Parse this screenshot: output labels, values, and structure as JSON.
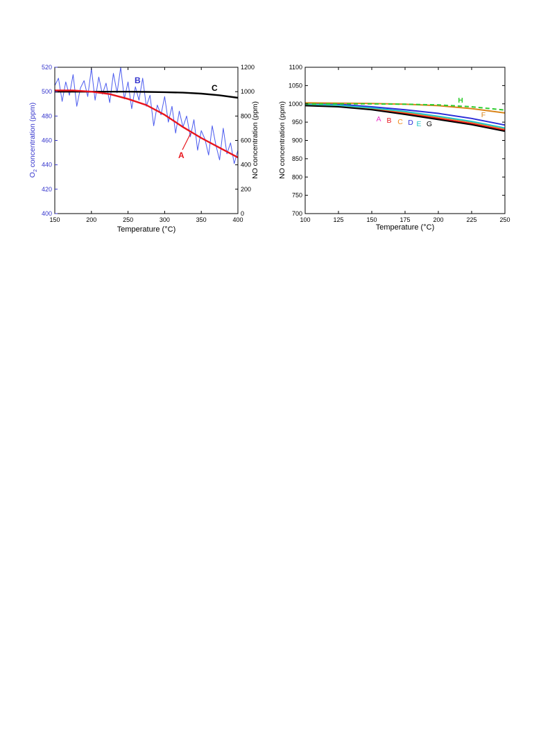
{
  "chart_data": [
    {
      "type": "line",
      "xlabel": "Temperature (°C)",
      "ylabel_left_main": "O",
      "ylabel_left_sub": "2",
      "ylabel_left_rest": " concentration (ppm)",
      "ylabel_right": "NO concentration (ppm)",
      "xlim": [
        150,
        400
      ],
      "ylim_left": [
        400,
        520
      ],
      "ylim_right": [
        0,
        1200
      ],
      "xticks": [
        150,
        200,
        250,
        300,
        350,
        400
      ],
      "yticks_left": [
        400,
        420,
        440,
        460,
        480,
        500,
        520
      ],
      "yticks_right": [
        0,
        200,
        400,
        600,
        800,
        1000,
        1200
      ],
      "colors": {
        "left_axis": "#3333cc",
        "A": "#e8141c",
        "B": "#4a5aee",
        "C": "#000000"
      },
      "annotations": {
        "A": "A",
        "B": "B",
        "C": "C"
      },
      "series": [
        {
          "label": "A",
          "axis": "left",
          "x": [
            150,
            175,
            200,
            225,
            250,
            275,
            300,
            325,
            350,
            375,
            400
          ],
          "y": [
            501,
            501,
            500,
            498,
            494,
            489,
            481,
            471,
            462,
            454,
            446
          ]
        },
        {
          "label": "B",
          "axis": "left",
          "x": [
            150,
            155,
            160,
            165,
            170,
            175,
            180,
            185,
            190,
            195,
            200,
            205,
            210,
            215,
            220,
            225,
            230,
            235,
            240,
            245,
            250,
            255,
            260,
            265,
            270,
            275,
            280,
            285,
            290,
            295,
            300,
            305,
            310,
            315,
            320,
            325,
            330,
            335,
            340,
            345,
            350,
            355,
            360,
            365,
            370,
            375,
            380,
            385,
            390,
            395,
            400
          ],
          "y": [
            505,
            511,
            492,
            508,
            497,
            514,
            488,
            503,
            509,
            496,
            519,
            493,
            512,
            498,
            507,
            491,
            515,
            499,
            520,
            494,
            508,
            486,
            504,
            493,
            511,
            488,
            497,
            472,
            489,
            481,
            496,
            475,
            488,
            466,
            484,
            471,
            480,
            463,
            477,
            452,
            468,
            461,
            448,
            472,
            456,
            444,
            470,
            449,
            458,
            441,
            452
          ]
        },
        {
          "label": "C",
          "axis": "right",
          "x": [
            150,
            175,
            200,
            225,
            250,
            275,
            300,
            325,
            350,
            375,
            400
          ],
          "y": [
            1000,
            1000,
            1000,
            1000,
            1000,
            998,
            996,
            992,
            984,
            970,
            950
          ]
        }
      ]
    },
    {
      "type": "line",
      "xlabel": "Temperature (°C)",
      "ylabel": "NO concentration (ppm)",
      "xlim": [
        100,
        250
      ],
      "ylim": [
        700,
        1100
      ],
      "xticks": [
        100,
        125,
        150,
        175,
        200,
        225,
        250
      ],
      "yticks": [
        700,
        750,
        800,
        850,
        900,
        950,
        1000,
        1050,
        1100
      ],
      "series": [
        {
          "label": "A",
          "color": "#ee33cc",
          "dash": false,
          "x": [
            100,
            125,
            150,
            175,
            200,
            225,
            250
          ],
          "y": [
            996,
            993,
            985,
            972,
            958,
            944,
            926
          ]
        },
        {
          "label": "B",
          "color": "#e8141c",
          "dash": false,
          "x": [
            100,
            125,
            150,
            175,
            200,
            225,
            250
          ],
          "y": [
            997,
            994,
            986,
            974,
            960,
            946,
            928
          ]
        },
        {
          "label": "C",
          "color": "#f08c1e",
          "dash": false,
          "x": [
            100,
            125,
            150,
            175,
            200,
            225,
            250
          ],
          "y": [
            998,
            995,
            988,
            977,
            964,
            950,
            932
          ]
        },
        {
          "label": "D",
          "color": "#2b2bd8",
          "dash": false,
          "x": [
            100,
            125,
            150,
            175,
            200,
            225,
            250
          ],
          "y": [
            1002,
            999,
            992,
            984,
            974,
            960,
            942
          ]
        },
        {
          "label": "E",
          "color": "#22c4c8",
          "dash": false,
          "x": [
            100,
            125,
            150,
            175,
            200,
            225,
            250
          ],
          "y": [
            999,
            996,
            989,
            979,
            966,
            952,
            934
          ]
        },
        {
          "label": "F",
          "color": "#d9841a",
          "dash": false,
          "x": [
            100,
            125,
            150,
            175,
            200,
            225,
            250
          ],
          "y": [
            1003,
            1002,
            1001,
            999,
            995,
            987,
            975
          ]
        },
        {
          "label": "G",
          "color": "#000000",
          "dash": false,
          "x": [
            100,
            125,
            150,
            175,
            200,
            225,
            250
          ],
          "y": [
            995,
            992,
            984,
            971,
            957,
            943,
            925
          ]
        },
        {
          "label": "H",
          "color": "#2ecc2e",
          "dash": true,
          "x": [
            100,
            125,
            150,
            175,
            200,
            225,
            250
          ],
          "y": [
            1000,
            1000,
            1000,
            999,
            997,
            992,
            983
          ]
        }
      ]
    }
  ]
}
